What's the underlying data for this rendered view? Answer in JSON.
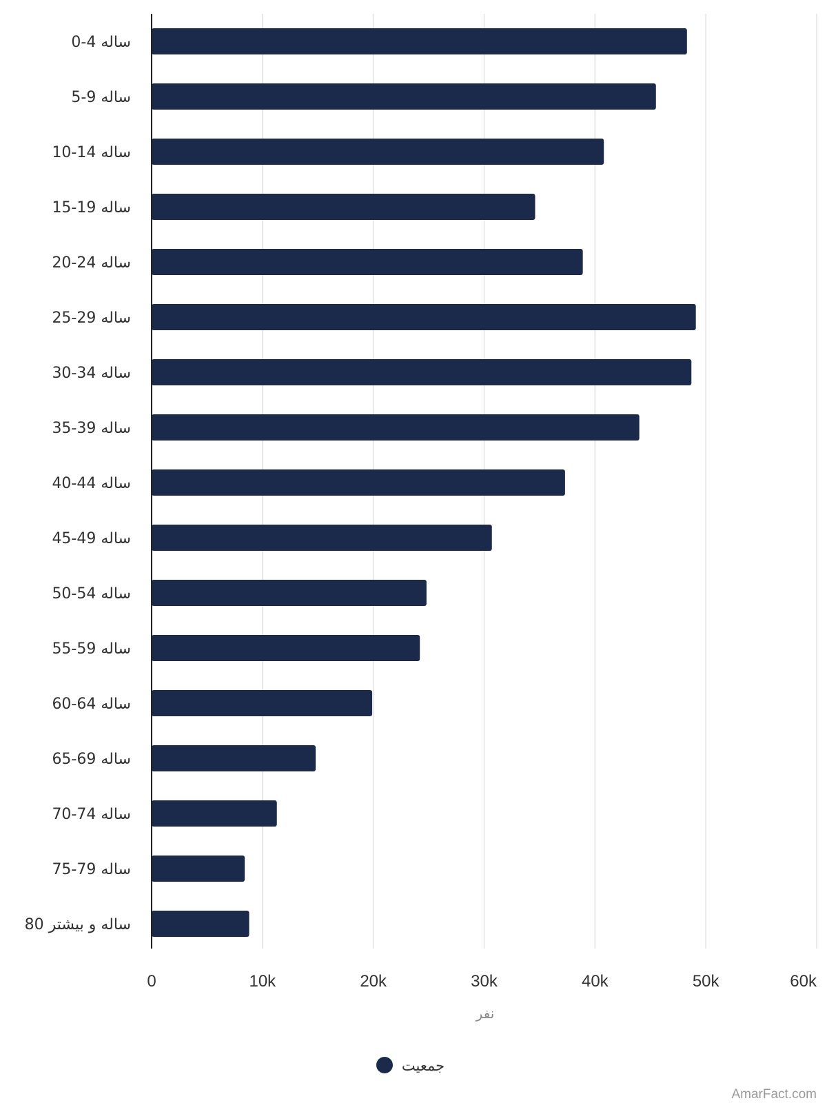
{
  "chart_data": {
    "type": "bar",
    "orientation": "horizontal",
    "categories": [
      "0-4 ساله",
      "5-9 ساله",
      "10-14 ساله",
      "15-19 ساله",
      "20-24 ساله",
      "25-29 ساله",
      "30-34 ساله",
      "35-39 ساله",
      "40-44 ساله",
      "45-49 ساله",
      "50-54 ساله",
      "55-59 ساله",
      "60-64 ساله",
      "65-69 ساله",
      "70-74 ساله",
      "75-79 ساله",
      "80 ساله و بیشتر"
    ],
    "series": [
      {
        "name": "جمعیت",
        "color": "#1b2a4a",
        "values": [
          48300,
          45500,
          40800,
          34600,
          38900,
          49100,
          48700,
          44000,
          37300,
          30700,
          24800,
          24200,
          19900,
          14800,
          11300,
          8400,
          8800
        ]
      }
    ],
    "xlabel": "نفر",
    "ylabel": "",
    "xlim": [
      0,
      60000
    ],
    "x_ticks": [
      0,
      10000,
      20000,
      30000,
      40000,
      50000,
      60000
    ],
    "x_tick_labels": [
      "0",
      "10k",
      "20k",
      "30k",
      "40k",
      "50k",
      "60k"
    ],
    "grid": true,
    "legend_position": "bottom"
  },
  "watermark": "AmarFact.com"
}
